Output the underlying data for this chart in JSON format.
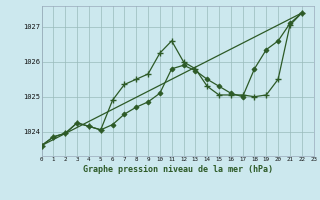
{
  "bg_color": "#cce8ee",
  "grid_color": "#99bbbb",
  "line_color": "#2d5a27",
  "title": "Graphe pression niveau de la mer (hPa)",
  "xlim": [
    0,
    23
  ],
  "ylim": [
    1023.3,
    1027.6
  ],
  "yticks": [
    1024,
    1025,
    1026,
    1027
  ],
  "xticks": [
    0,
    1,
    2,
    3,
    4,
    5,
    6,
    7,
    8,
    9,
    10,
    11,
    12,
    13,
    14,
    15,
    16,
    17,
    18,
    19,
    20,
    21,
    22,
    23
  ],
  "line_straight": {
    "x": [
      0,
      22
    ],
    "y": [
      1023.6,
      1027.4
    ]
  },
  "line_peaked": {
    "x": [
      0,
      1,
      2,
      3,
      4,
      5,
      6,
      7,
      8,
      9,
      10,
      11,
      12,
      13,
      14,
      15,
      16,
      17,
      18,
      19,
      20,
      21,
      22
    ],
    "y": [
      1023.6,
      1023.85,
      1023.95,
      1024.25,
      1024.15,
      1024.05,
      1024.9,
      1025.35,
      1025.5,
      1025.65,
      1026.25,
      1026.6,
      1026.0,
      1025.8,
      1025.3,
      1025.05,
      1025.05,
      1025.05,
      1025.0,
      1025.05,
      1025.5,
      1027.05,
      1027.4
    ]
  },
  "line_middle": {
    "x": [
      0,
      1,
      2,
      3,
      4,
      5,
      6,
      7,
      8,
      9,
      10,
      11,
      12,
      13,
      14,
      15,
      16,
      17,
      18,
      19,
      20,
      21,
      22
    ],
    "y": [
      1023.6,
      1023.85,
      1023.95,
      1024.25,
      1024.15,
      1024.05,
      1024.2,
      1024.5,
      1024.7,
      1024.85,
      1025.1,
      1025.8,
      1025.9,
      1025.75,
      1025.5,
      1025.3,
      1025.1,
      1025.0,
      1025.8,
      1026.35,
      1026.6,
      1027.1,
      1027.4
    ]
  }
}
